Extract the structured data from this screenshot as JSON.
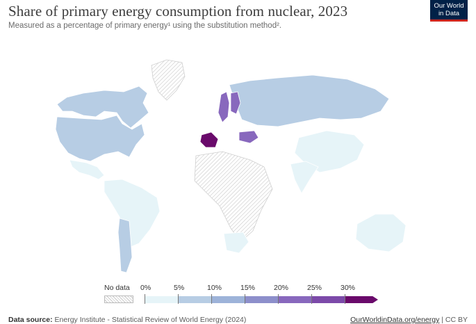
{
  "title": "Share of primary energy consumption from nuclear, 2023",
  "subtitle": "Measured as a percentage of primary energy¹ using the substitution method².",
  "logo": {
    "line1": "Our World",
    "line2": "in Data"
  },
  "legend": {
    "no_data_label": "No data",
    "ticks": [
      "0%",
      "5%",
      "10%",
      "15%",
      "20%",
      "25%",
      "30%"
    ],
    "bins": [
      {
        "range": "0–5%",
        "color": "#e6f4f8"
      },
      {
        "range": "5–10%",
        "color": "#b7cde4"
      },
      {
        "range": "10–15%",
        "color": "#9db3d9"
      },
      {
        "range": "15–20%",
        "color": "#8d8fcb"
      },
      {
        "range": "20–25%",
        "color": "#8868bd"
      },
      {
        "range": "25–30%",
        "color": "#7c4aa9"
      },
      {
        "range": "30%+",
        "color": "#6a0a6b"
      }
    ]
  },
  "colors": {
    "no_data": "#e3e3e3",
    "low": "#e6f4f8",
    "mid_low": "#b7cde4",
    "mid": "#9db3d9",
    "purple": "#8868bd",
    "dark": "#6a0a6b",
    "border": "#ffffff"
  },
  "regions": [
    {
      "name": "Canada",
      "bin": "mid_low"
    },
    {
      "name": "United States",
      "bin": "mid_low"
    },
    {
      "name": "Greenland",
      "bin": "no_data"
    },
    {
      "name": "Mexico",
      "bin": "low"
    },
    {
      "name": "South America",
      "bin": "low"
    },
    {
      "name": "Argentina",
      "bin": "mid_low"
    },
    {
      "name": "Russia",
      "bin": "mid_low"
    },
    {
      "name": "France",
      "bin": "dark"
    },
    {
      "name": "Sweden",
      "bin": "purple"
    },
    {
      "name": "Finland",
      "bin": "purple"
    },
    {
      "name": "Ukraine",
      "bin": "purple"
    },
    {
      "name": "China",
      "bin": "low"
    },
    {
      "name": "Africa",
      "bin": "no_data"
    },
    {
      "name": "South Africa",
      "bin": "low"
    },
    {
      "name": "Australia",
      "bin": "low"
    },
    {
      "name": "India",
      "bin": "low"
    }
  ],
  "footer": {
    "source_label": "Data source:",
    "source_text": "Energy Institute - Statistical Review of World Energy (2024)",
    "url": "OurWorldinData.org/energy",
    "license": " | CC BY"
  }
}
